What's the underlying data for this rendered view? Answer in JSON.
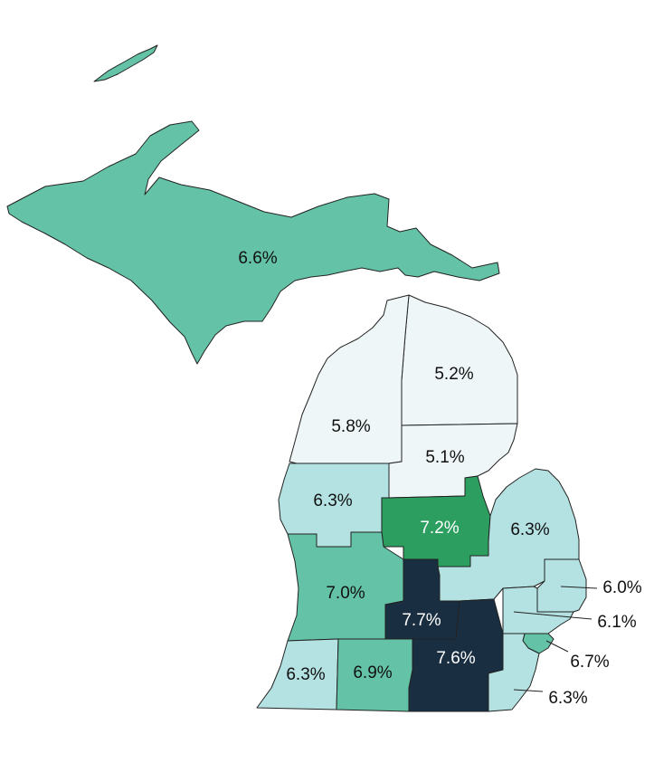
{
  "colors": {
    "lightest": "#eef6f7",
    "light": "#b4e2e2",
    "medium": "#64c3a6",
    "green": "#2c9e5f",
    "dark": "#1a2e42",
    "label_dark": "#111111",
    "label_light": "#ffffff",
    "outline": "#222222"
  },
  "regions": [
    {
      "id": "upper-peninsula",
      "value": "6.6%",
      "fill": "medium"
    },
    {
      "id": "northeast",
      "value": "5.2%",
      "fill": "lightest"
    },
    {
      "id": "northwest",
      "value": "5.8%",
      "fill": "lightest"
    },
    {
      "id": "northeast-central",
      "value": "5.1%",
      "fill": "lightest"
    },
    {
      "id": "west-central",
      "value": "6.3%",
      "fill": "light"
    },
    {
      "id": "east-central",
      "value": "7.2%",
      "fill": "green"
    },
    {
      "id": "thumb",
      "value": "6.3%",
      "fill": "light"
    },
    {
      "id": "west-michigan",
      "value": "7.0%",
      "fill": "medium"
    },
    {
      "id": "central",
      "value": "7.7%",
      "fill": "dark"
    },
    {
      "id": "southeast-oakland",
      "value": "6.0%",
      "fill": "light"
    },
    {
      "id": "southeast-wayne",
      "value": "6.1%",
      "fill": "light"
    },
    {
      "id": "southeast-detroit",
      "value": "6.7%",
      "fill": "medium"
    },
    {
      "id": "south-central",
      "value": "7.6%",
      "fill": "dark"
    },
    {
      "id": "southwest",
      "value": "6.3%",
      "fill": "light"
    },
    {
      "id": "south-kalamazoo",
      "value": "6.9%",
      "fill": "medium"
    },
    {
      "id": "southeast-monroe",
      "value": "6.3%",
      "fill": "light"
    }
  ]
}
